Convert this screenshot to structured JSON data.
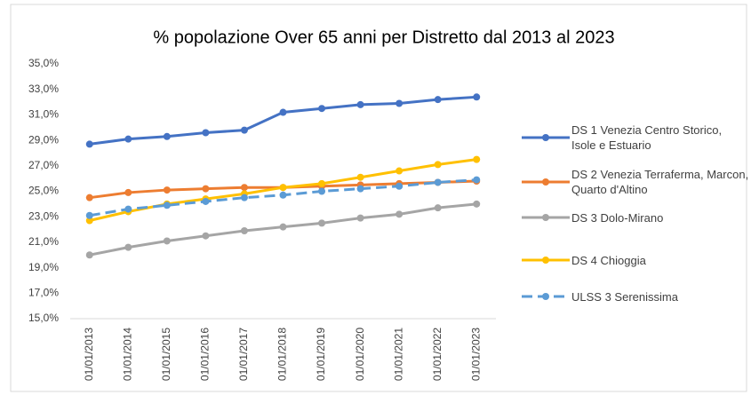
{
  "chart_data": {
    "type": "line",
    "title": "% popolazione Over 65 anni per Distretto dal 2013 al 2023",
    "categories": [
      "01/01/2013",
      "01/01/2014",
      "01/01/2015",
      "01/01/2016",
      "01/01/2017",
      "01/01/2018",
      "01/01/2019",
      "01/01/2020",
      "01/01/2021",
      "01/01/2022",
      "01/01/2023"
    ],
    "series": [
      {
        "name": "DS 1 Venezia Centro Storico, Isole e Estuario",
        "color": "#4472c4",
        "dashed": false,
        "values": [
          28.7,
          29.1,
          29.3,
          29.6,
          29.8,
          31.2,
          31.5,
          31.8,
          31.9,
          32.2,
          32.4
        ]
      },
      {
        "name": "DS 2 Venezia Terraferma, Marcon, Quarto d'Altino",
        "color": "#ed7d31",
        "dashed": false,
        "values": [
          24.5,
          24.9,
          25.1,
          25.2,
          25.3,
          25.3,
          25.4,
          25.5,
          25.6,
          25.7,
          25.8
        ]
      },
      {
        "name": "DS 3 Dolo-Mirano",
        "color": "#a5a5a5",
        "dashed": false,
        "values": [
          20.0,
          20.6,
          21.1,
          21.5,
          21.9,
          22.2,
          22.5,
          22.9,
          23.2,
          23.7,
          24.0
        ]
      },
      {
        "name": "DS 4 Chioggia",
        "color": "#ffc000",
        "dashed": false,
        "values": [
          22.7,
          23.4,
          24.0,
          24.4,
          24.8,
          25.3,
          25.6,
          26.1,
          26.6,
          27.1,
          27.5
        ]
      },
      {
        "name": "ULSS 3 Serenissima",
        "color": "#5b9bd5",
        "dashed": true,
        "values": [
          23.1,
          23.6,
          23.9,
          24.2,
          24.5,
          24.7,
          25.0,
          25.2,
          25.4,
          25.7,
          25.9
        ]
      }
    ],
    "ylim": [
      15,
      35
    ],
    "yticks": [
      {
        "value": 15,
        "label": "15,0%"
      },
      {
        "value": 17,
        "label": "17,0%"
      },
      {
        "value": 19,
        "label": "19,0%"
      },
      {
        "value": 21,
        "label": "21,0%"
      },
      {
        "value": 23,
        "label": "23,0%"
      },
      {
        "value": 25,
        "label": "25,0%"
      },
      {
        "value": 27,
        "label": "27,0%"
      },
      {
        "value": 29,
        "label": "29,0%"
      },
      {
        "value": 31,
        "label": "31,0%"
      },
      {
        "value": 33,
        "label": "33,0%"
      },
      {
        "value": 35,
        "label": "35,0%"
      }
    ],
    "grid": false,
    "legend": "right"
  }
}
